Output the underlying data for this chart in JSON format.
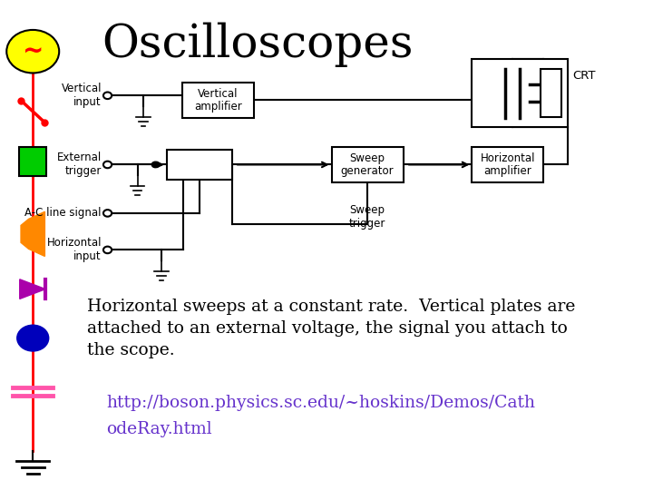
{
  "title": "Oscilloscopes",
  "title_fontsize": 36,
  "title_color": "#000000",
  "bg_color": "#ffffff",
  "body_text": "Horizontal sweeps at a constant rate.  Vertical plates are\nattached to an external voltage, the signal you attach to\nthe scope.",
  "body_text_fontsize": 13.5,
  "body_text_color": "#000000",
  "url_line1": "http://boson.physics.sc.edu/~hoskins/Demos/Cath",
  "url_line2": "odeRay.html",
  "url_color": "#6633cc",
  "url_fontsize": 13.5
}
